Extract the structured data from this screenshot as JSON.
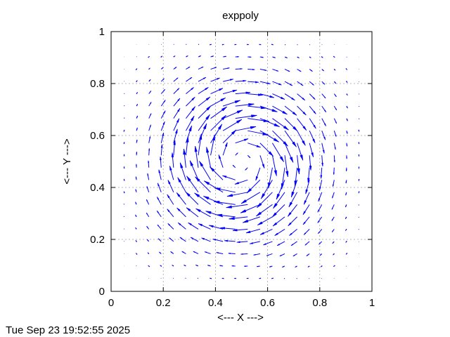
{
  "chart_data": {
    "type": "vector-field",
    "title": "exppoly",
    "xlabel": "<--- X --->",
    "ylabel": "<--- Y --->",
    "xlim": [
      0,
      1
    ],
    "ylim": [
      0,
      1
    ],
    "xticks": [
      "0",
      "0.2",
      "0.4",
      "0.6",
      "0.8",
      "1"
    ],
    "yticks": [
      "0",
      "0.2",
      "0.4",
      "0.6",
      "0.8",
      "1"
    ],
    "xtick_values": [
      0,
      0.2,
      0.4,
      0.6,
      0.8,
      1
    ],
    "ytick_values": [
      0,
      0.2,
      0.4,
      0.6,
      0.8,
      1
    ],
    "grid": true,
    "grid_points_per_axis": 20,
    "grid_min": 0.05,
    "grid_max": 0.95,
    "rotation": "clockwise",
    "center": [
      0.5,
      0.5
    ],
    "arrow_color": "#0000ff",
    "grid_color": "#a0a0a0"
  },
  "footer": {
    "timestamp": "Tue Sep 23 19:52:55 2025"
  }
}
